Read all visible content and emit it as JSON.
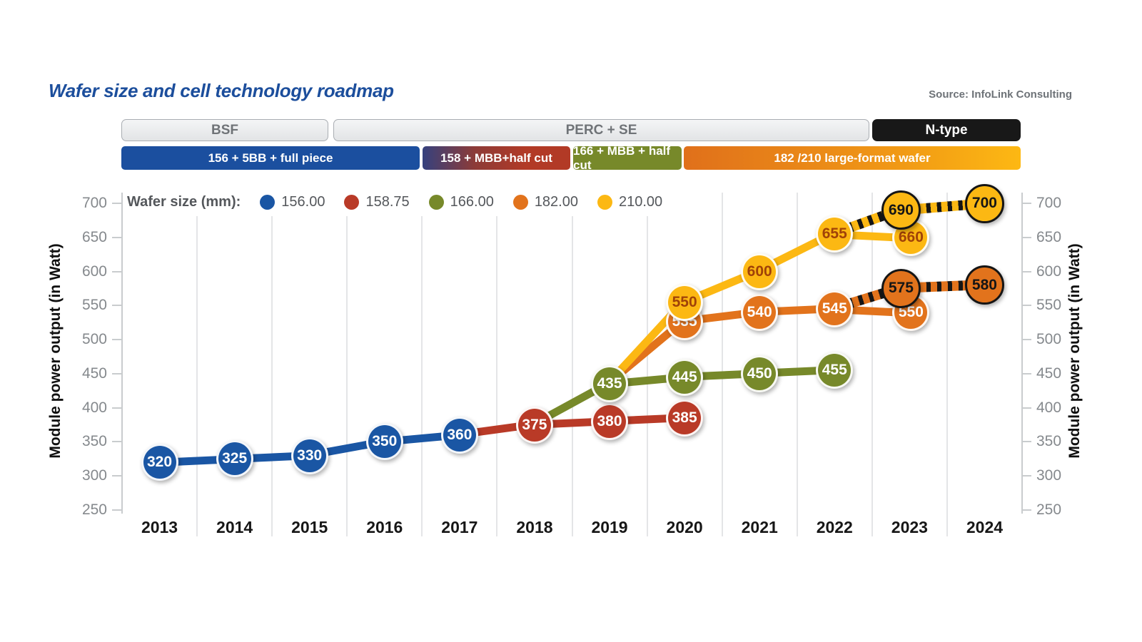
{
  "title": "Wafer size and cell technology roadmap",
  "source": "Source: InfoLink Consulting",
  "era_bars": [
    {
      "label": "BSF"
    },
    {
      "label": "PERC + SE"
    },
    {
      "label": "N-type"
    }
  ],
  "wafer_tech_bars": [
    {
      "label": "156 + 5BB + full piece",
      "stops": [
        "#1b4f9f",
        "#1b4f9f"
      ]
    },
    {
      "label": "158 + MBB+half cut",
      "stops": [
        "#35417e",
        "#8c3b38 35%",
        "#b23a26 70%",
        "#b23a26"
      ]
    },
    {
      "label": "166 + MBB + half cut",
      "stops": [
        "#77892a",
        "#77892a"
      ]
    },
    {
      "label": "182 /210 large-format wafer",
      "stops": [
        "#e0701b",
        "#f19a15 65%",
        "#fdb813"
      ]
    }
  ],
  "legend": {
    "label": "Wafer size (mm):",
    "items": [
      {
        "label": "156.00",
        "color": "#1a56a4"
      },
      {
        "label": "158.75",
        "color": "#b93a27"
      },
      {
        "label": "166.00",
        "color": "#77892a"
      },
      {
        "label": "182.00",
        "color": "#e2731c"
      },
      {
        "label": "210.00",
        "color": "#fcb813"
      }
    ]
  },
  "chart_data": {
    "type": "line",
    "title": "Wafer size and cell technology roadmap",
    "xlabel": "",
    "ylabel": "Module power output (in Watt)",
    "x": [
      2013,
      2014,
      2015,
      2016,
      2017,
      2018,
      2019,
      2020,
      2021,
      2022,
      2023,
      2024
    ],
    "ylim": [
      250,
      700
    ],
    "y_ticks": [
      700,
      650,
      600,
      550,
      500,
      450,
      400,
      350,
      300,
      250
    ],
    "grid": "vertical-only",
    "legend_position": "top-left-inside",
    "series": [
      {
        "name": "156.00",
        "color": "#1a56a4",
        "text_color": "#ffffff",
        "points": [
          [
            2013,
            320
          ],
          [
            2014,
            325
          ],
          [
            2015,
            330
          ],
          [
            2016,
            350
          ],
          [
            2017,
            360
          ]
        ]
      },
      {
        "name": "158.75",
        "color": "#b93a27",
        "text_color": "#ffffff",
        "lead_in": [
          2017,
          360
        ],
        "points": [
          [
            2018,
            375
          ],
          [
            2019,
            380
          ],
          [
            2020,
            385
          ]
        ]
      },
      {
        "name": "166.00",
        "color": "#77892a",
        "text_color": "#ffffff",
        "lead_in": [
          2018,
          375
        ],
        "points": [
          [
            2019,
            435
          ],
          [
            2020,
            445
          ],
          [
            2021,
            450
          ],
          [
            2022,
            455
          ]
        ]
      },
      {
        "name": "182.00",
        "color": "#e2731c",
        "text_color": "#ffffff",
        "lead_in": [
          2019,
          435
        ],
        "points": [
          [
            2020,
            535,
            0,
            8
          ],
          [
            2021,
            540
          ],
          [
            2022,
            545
          ],
          [
            2023,
            550,
            2,
            10
          ]
        ],
        "forecast": {
          "from": [
            2022,
            545
          ],
          "points": [
            [
              2023,
              575,
              -12,
              0
            ],
            [
              2024,
              580
            ]
          ]
        }
      },
      {
        "name": "210.00",
        "color": "#fcb813",
        "text_color": "#a04208",
        "lead_in": [
          2019,
          435
        ],
        "points": [
          [
            2020,
            550,
            0,
            -4
          ],
          [
            2021,
            600
          ],
          [
            2022,
            655
          ],
          [
            2023,
            660,
            2,
            10
          ]
        ],
        "forecast": {
          "from": [
            2022,
            655
          ],
          "points": [
            [
              2023,
              690,
              -12,
              0
            ],
            [
              2024,
              700
            ]
          ]
        }
      }
    ],
    "forecast_style": {
      "ring_color": "#151515",
      "text_color": "#151515",
      "dash_color": "#151515"
    }
  }
}
